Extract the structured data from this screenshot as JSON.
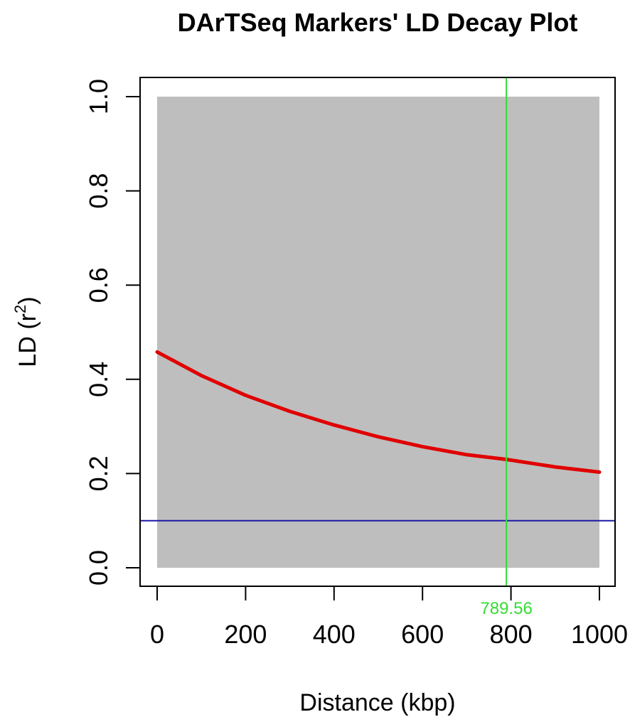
{
  "chart_data": {
    "type": "scatter",
    "title": "DArTSeq Markers' LD Decay Plot",
    "xlabel": "Distance (kbp)",
    "ylabel_main": "LD (r",
    "ylabel_sup": "2",
    "ylabel_close": ")",
    "xlim": [
      0,
      1000
    ],
    "ylim": [
      0,
      1
    ],
    "x_ticks": [
      0,
      200,
      400,
      600,
      800,
      1000
    ],
    "x_tick_labels": [
      "0",
      "200",
      "400",
      "600",
      "800",
      "1000"
    ],
    "y_ticks": [
      0,
      0.2,
      0.4,
      0.6,
      0.8,
      1.0
    ],
    "y_tick_labels": [
      "0.0",
      "0.2",
      "0.4",
      "0.6",
      "0.8",
      "1.0"
    ],
    "scatter_region": {
      "x_range": [
        0,
        1000
      ],
      "y_range": [
        0,
        1
      ],
      "color": "#bebebe"
    },
    "series": [
      {
        "type": "line",
        "color": "#e00000",
        "x": [
          0,
          100,
          200,
          300,
          400,
          500,
          600,
          700,
          789.56,
          900,
          1000
        ],
        "y": [
          0.458,
          0.408,
          0.366,
          0.332,
          0.303,
          0.278,
          0.257,
          0.24,
          0.23,
          0.214,
          0.203
        ]
      }
    ],
    "hline": {
      "y": 0.1,
      "color": "#1a1aa8"
    },
    "vline": {
      "x": 789.56,
      "color": "#33dd33",
      "label": "789.56"
    },
    "grid": false
  }
}
